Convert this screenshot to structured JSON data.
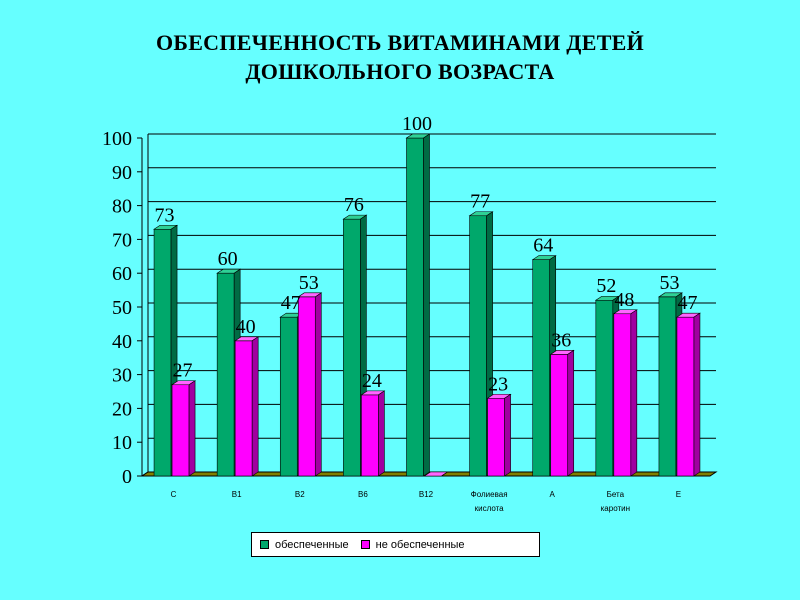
{
  "title_line1": "ОБЕСПЕЧЕННОСТЬ ВИТАМИНАМИ ДЕТЕЙ",
  "title_line2": "ДОШКОЛЬНОГО ВОЗРАСТА",
  "colors": {
    "background": "#66FFFF",
    "series_provided": "#00A86B",
    "series_not_provided": "#FF00FF"
  },
  "chart_data": {
    "type": "bar",
    "categories": [
      "C",
      "B1",
      "B2",
      "B6",
      "B12",
      "Фолиевая кислота",
      "A",
      "Бета каротин",
      "E"
    ],
    "category_lines": [
      [
        "C"
      ],
      [
        "B1"
      ],
      [
        "B2"
      ],
      [
        "B6"
      ],
      [
        "B12"
      ],
      [
        "Фолиевая",
        "кислота"
      ],
      [
        "A"
      ],
      [
        "Бета",
        "каротин"
      ],
      [
        "E"
      ]
    ],
    "series": [
      {
        "name": "обеспеченные",
        "values": [
          73,
          60,
          47,
          76,
          100,
          77,
          64,
          52,
          53
        ]
      },
      {
        "name": "не обеспеченные",
        "values": [
          27,
          40,
          53,
          24,
          0,
          23,
          36,
          48,
          47
        ]
      }
    ],
    "data_labels": [
      [
        "73",
        "60",
        "47",
        "76",
        "100",
        "77",
        "64",
        "52",
        "53"
      ],
      [
        "27",
        "40",
        "53",
        "24",
        "",
        "23",
        "36",
        "48",
        "47"
      ]
    ],
    "yticks": [
      "0",
      "10",
      "20",
      "30",
      "40",
      "50",
      "60",
      "70",
      "80",
      "90",
      "100"
    ],
    "ylim": [
      0,
      100
    ],
    "grid": true,
    "legend_position": "bottom",
    "title": "ОБЕСПЕЧЕННОСТЬ ВИТАМИНАМИ ДЕТЕЙ ДОШКОЛЬНОГО ВОЗРАСТА"
  },
  "legend": {
    "item1": "обеспеченные",
    "item2": "не обеспеченные"
  }
}
